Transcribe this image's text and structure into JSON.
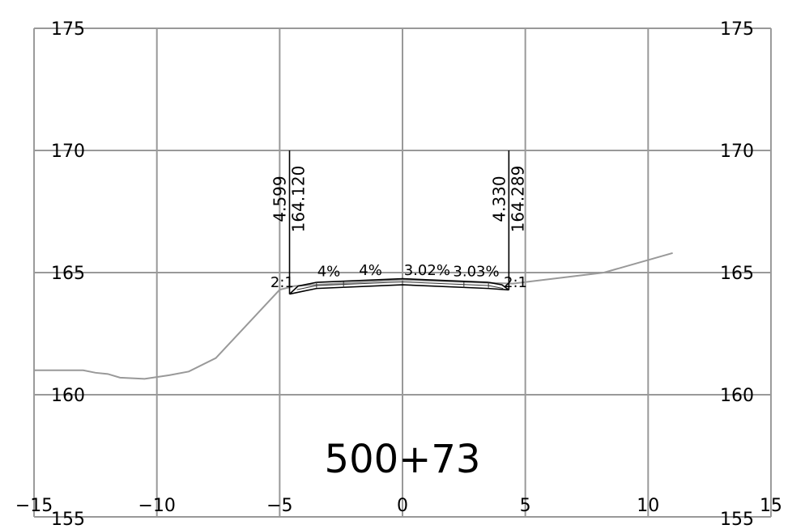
{
  "grid": {
    "x_ticks": [
      -15,
      -10,
      -5,
      0,
      5,
      10,
      15
    ],
    "x_tick_labels": [
      "−15",
      "−10",
      "−5",
      "0",
      "5",
      "10",
      "15"
    ],
    "y_ticks": [
      155,
      160,
      165,
      170,
      175
    ],
    "y_tick_labels": [
      "155",
      "160",
      "165",
      "170",
      "175"
    ],
    "xlim": [
      -15,
      15
    ],
    "ylim": [
      155,
      175
    ]
  },
  "station": "500+73",
  "ground_profile": [
    [
      -15,
      161.0
    ],
    [
      -13.0,
      161.0
    ],
    [
      -12.5,
      160.9
    ],
    [
      -12.0,
      160.85
    ],
    [
      -11.5,
      160.7
    ],
    [
      -10.5,
      160.65
    ],
    [
      -9.5,
      160.8
    ],
    [
      -8.7,
      160.95
    ],
    [
      -7.6,
      161.5
    ],
    [
      -6.3,
      162.9
    ],
    [
      -5.0,
      164.3
    ],
    [
      -4.4,
      164.45
    ],
    [
      0,
      164.7
    ],
    [
      4.5,
      164.55
    ],
    [
      8.2,
      165.0
    ],
    [
      11.0,
      165.8
    ]
  ],
  "design_top": [
    [
      -4.6,
      164.12
    ],
    [
      -4.25,
      164.45
    ],
    [
      -3.5,
      164.6
    ],
    [
      0,
      164.75
    ],
    [
      3.5,
      164.6
    ],
    [
      4.05,
      164.5
    ],
    [
      4.33,
      164.289
    ]
  ],
  "design_bottom": [
    [
      -4.6,
      164.12
    ],
    [
      -3.5,
      164.35
    ],
    [
      0,
      164.5
    ],
    [
      3.5,
      164.35
    ],
    [
      4.33,
      164.289
    ]
  ],
  "left_offset": {
    "x": -4.599,
    "elev": 164.12,
    "offset_text": "4.599",
    "elev_text": "164.120"
  },
  "right_offset": {
    "x": 4.33,
    "elev": 164.289,
    "offset_text": "4.330",
    "elev_text": "164.289"
  },
  "slope_labels": [
    {
      "text": "2:1",
      "x": -4.9,
      "y": 164.4
    },
    {
      "text": "4%",
      "x": -3.0,
      "y": 164.85
    },
    {
      "text": "4%",
      "x": -1.3,
      "y": 164.9
    },
    {
      "text": "3.02%",
      "x": 1.0,
      "y": 164.9
    },
    {
      "text": "3.03%",
      "x": 3.0,
      "y": 164.85
    },
    {
      "text": "2:1",
      "x": 4.6,
      "y": 164.4
    }
  ]
}
